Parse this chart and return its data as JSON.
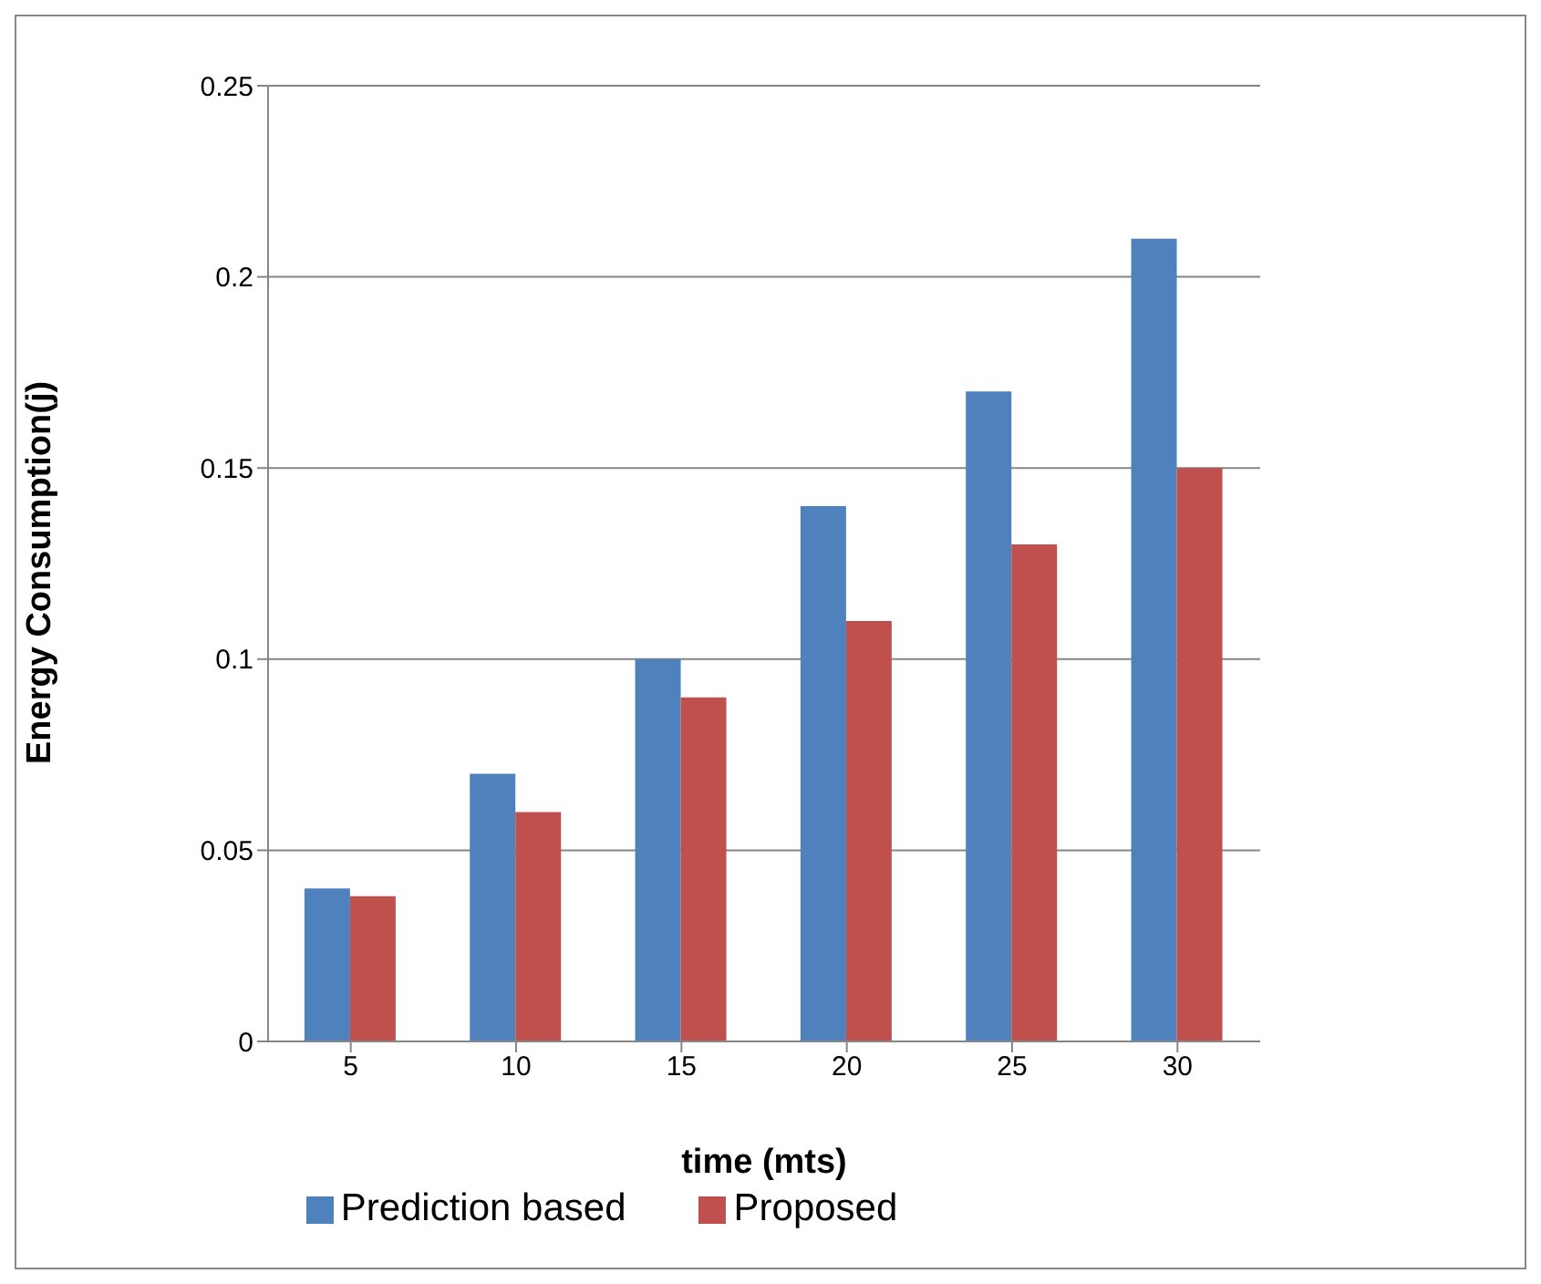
{
  "chart_data": {
    "type": "bar",
    "xlabel": "time (mts)",
    "ylabel": "Energy Consumption(j)",
    "categories": [
      "5",
      "10",
      "15",
      "20",
      "25",
      "30"
    ],
    "series": [
      {
        "name": "Prediction based",
        "color": "#4f81bd",
        "values": [
          0.04,
          0.07,
          0.1,
          0.14,
          0.17,
          0.21
        ]
      },
      {
        "name": "Proposed",
        "color": "#c0504d",
        "values": [
          0.038,
          0.06,
          0.09,
          0.11,
          0.13,
          0.15
        ]
      }
    ],
    "ylim": [
      0,
      0.25
    ],
    "yticks": [
      0,
      0.05,
      0.1,
      0.15,
      0.2,
      0.25
    ],
    "grid": "y",
    "legend": "bottom"
  }
}
